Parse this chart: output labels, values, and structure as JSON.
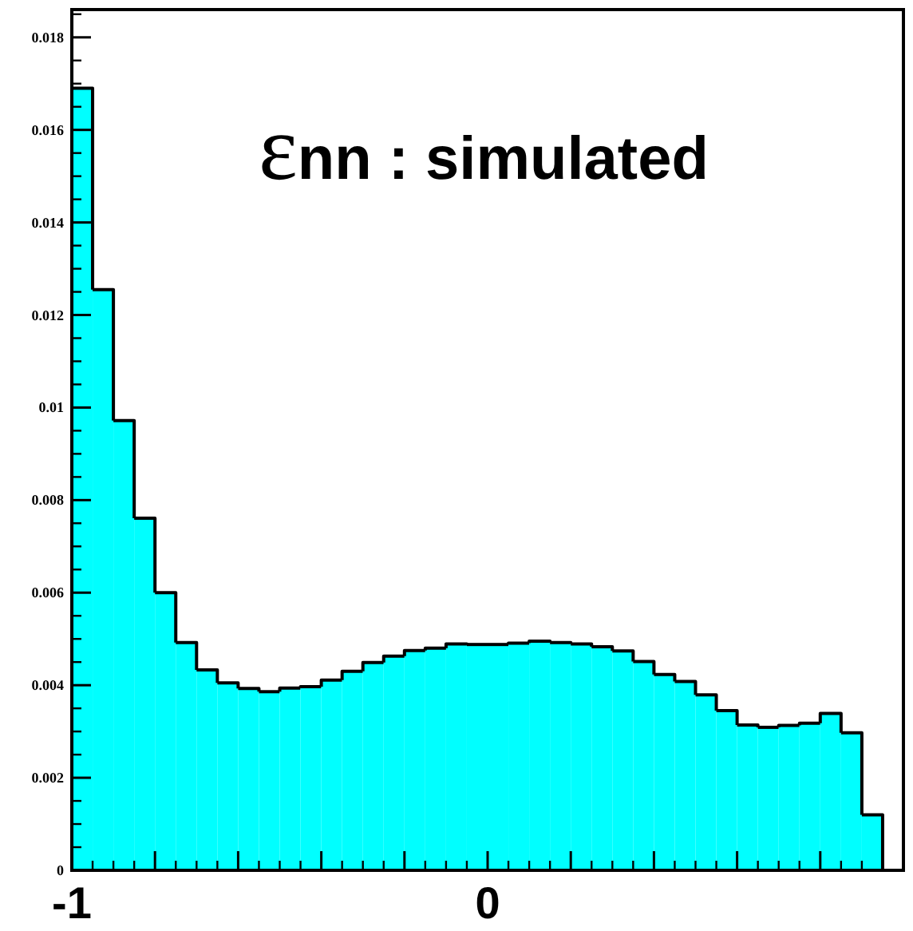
{
  "chart_data": {
    "type": "histogram",
    "title": "εnn : simulated",
    "bins": [
      -1,
      -0.95,
      -0.9,
      -0.85,
      -0.8,
      -0.75,
      -0.7,
      -0.65,
      -0.6,
      -0.55,
      -0.5,
      -0.45,
      -0.4,
      -0.35,
      -0.3,
      -0.25,
      -0.2,
      -0.15,
      -0.1,
      -0.05,
      0,
      0.05,
      0.1,
      0.15,
      0.2,
      0.25,
      0.3,
      0.35,
      0.4,
      0.45,
      0.5,
      0.55,
      0.6,
      0.65,
      0.7,
      0.75,
      0.8,
      0.85,
      0.9,
      0.95,
      1
    ],
    "values": [
      0.0169,
      0.01255,
      0.00972,
      0.00761,
      0.006,
      0.00492,
      0.00433,
      0.00405,
      0.00393,
      0.00386,
      0.00394,
      0.00397,
      0.00411,
      0.0043,
      0.00449,
      0.00463,
      0.00475,
      0.0048,
      0.00489,
      0.00488,
      0.00488,
      0.00491,
      0.00495,
      0.00492,
      0.00489,
      0.00483,
      0.00474,
      0.00451,
      0.00423,
      0.00408,
      0.00379,
      0.00345,
      0.00314,
      0.00309,
      0.00313,
      0.00318,
      0.00339,
      0.00297,
      0.0012,
      0
    ],
    "color": "#00ffff",
    "xlim": [
      -1,
      1
    ],
    "xticks": [
      -1,
      {
        "value": -0.8,
        "label": null
      },
      {
        "value": -0.6,
        "label": null
      },
      {
        "value": -0.4,
        "label": null
      },
      {
        "value": -0.2,
        "label": null
      },
      0,
      {
        "value": 0.2,
        "label": null
      },
      {
        "value": 0.4,
        "label": null
      },
      {
        "value": 0.6,
        "label": null
      },
      {
        "value": 0.8,
        "label": null
      }
    ],
    "ylim": [
      0,
      0.0186
    ],
    "yticks": [
      0,
      0.002,
      0.004,
      0.006,
      0.008,
      0.01,
      0.012,
      0.014,
      0.016,
      0.018
    ]
  }
}
